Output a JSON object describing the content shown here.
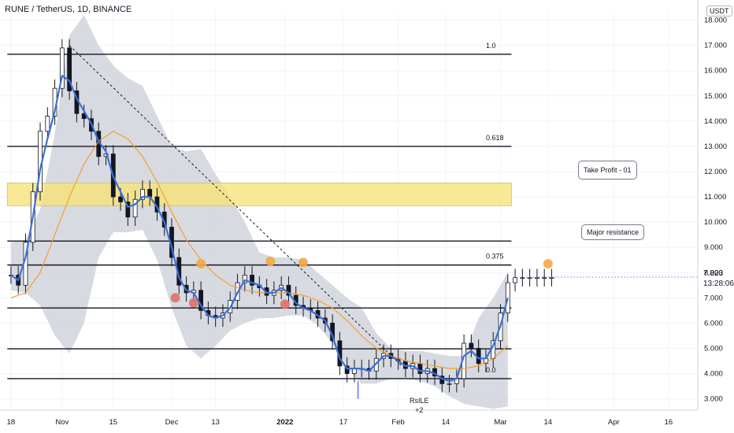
{
  "header": {
    "title": "RUNE / TetherUS, 1D, BINANCE",
    "unit": "USDT"
  },
  "price_readout": {
    "price": "7.823",
    "timer": "13:28:06"
  },
  "annotations": {
    "take_profit": "Take Profit - 01",
    "major_resistance": "Major resistance",
    "rsi_label": "RsILE",
    "rsi_sub": "+2"
  },
  "colors": {
    "candle_up": "#131722",
    "candle_down": "#131722",
    "body_up": "#ffffff",
    "ema_fast": "#3d6fd6",
    "ema_slow": "#f0a030",
    "band_fill": "#d1d4dc",
    "zone_fill": "#f7e27a",
    "marker_orange": "#f4a742",
    "marker_red": "#e06f6a",
    "grid": "#f0f3fa"
  },
  "chart_data": {
    "type": "line",
    "xlabel": "",
    "ylabel": "",
    "x_ticks": [
      "18",
      "Nov",
      "15",
      "Dec",
      "13",
      "2022",
      "17",
      "Feb",
      "14",
      "Mar",
      "14",
      "Apr",
      "16"
    ],
    "x_tick_days": [
      -14,
      0,
      14,
      30,
      42,
      61,
      77,
      92,
      105,
      120,
      133,
      151,
      166
    ],
    "y_ticks": [
      3.0,
      4.0,
      5.0,
      6.0,
      7.0,
      8.0,
      9.0,
      10.0,
      11.0,
      12.0,
      13.0,
      14.0,
      15.0,
      16.0,
      17.0,
      18.0
    ],
    "y_tick_labels": [
      "3.000",
      "4.000",
      "5.000",
      "6.000",
      "7.000",
      "8.000",
      "9.000",
      "10.000",
      "11.000",
      "12.000",
      "13.000",
      "14.000",
      "15.000",
      "16.000",
      "17.000",
      "18.000"
    ],
    "ylim": [
      2.55,
      18.3
    ],
    "xlim_days": [
      -17,
      174
    ],
    "grid": true,
    "fib_levels": [
      {
        "label": "1.0",
        "price": 16.65
      },
      {
        "label": "0.618",
        "price": 13.0
      },
      {
        "label": "",
        "price": 9.25
      },
      {
        "label": "0.375",
        "price": 8.3
      },
      {
        "label": "",
        "price": 6.6
      },
      {
        "label": "",
        "price": 4.98
      },
      {
        "label": "0.0",
        "price": 3.8
      }
    ],
    "zone": {
      "label": "Take Profit - 01",
      "y_low": 10.65,
      "y_high": 11.55
    },
    "trendline": {
      "start": [
        2,
        17.0
      ],
      "end": [
        93,
        4.3
      ]
    },
    "markers": [
      {
        "day": 38,
        "price": 8.35,
        "kind": "orange"
      },
      {
        "day": 57,
        "price": 8.45,
        "kind": "orange"
      },
      {
        "day": 66,
        "price": 8.4,
        "kind": "orange"
      },
      {
        "day": 133,
        "price": 8.35,
        "kind": "orange"
      },
      {
        "day": 31,
        "price": 7.0,
        "kind": "red"
      },
      {
        "day": 36,
        "price": 6.8,
        "kind": "red"
      },
      {
        "day": 61,
        "price": 6.75,
        "kind": "red"
      }
    ],
    "series": [
      {
        "day": [
          -14,
          -12,
          -10,
          -8,
          -6,
          -4,
          -2,
          0,
          2,
          4,
          6,
          8,
          10,
          12,
          14,
          16,
          18,
          20,
          22,
          24,
          26,
          28,
          30,
          32,
          34,
          36,
          38,
          40,
          42,
          44,
          46,
          48,
          50,
          52,
          54,
          56,
          58,
          60,
          62,
          64,
          66,
          68,
          70,
          72,
          74,
          76,
          78,
          80,
          82,
          84,
          86,
          88,
          90,
          92,
          94,
          96,
          98,
          100,
          102,
          104,
          106,
          108,
          110,
          112,
          114,
          116,
          118,
          120,
          122,
          124,
          126,
          128,
          130,
          132,
          134
        ],
        "close": [
          7.9,
          7.5,
          9.2,
          11.2,
          13.6,
          14.2,
          15.3,
          16.9,
          15.2,
          14.3,
          14.1,
          13.6,
          12.6,
          12.7,
          11.0,
          10.8,
          10.2,
          10.9,
          11.3,
          11.0,
          10.4,
          9.8,
          8.6,
          7.5,
          7.2,
          7.3,
          6.5,
          6.3,
          6.2,
          6.4,
          6.9,
          7.6,
          7.9,
          7.5,
          7.4,
          7.1,
          7.3,
          7.5,
          7.1,
          6.7,
          6.6,
          6.5,
          6.2,
          6.0,
          5.3,
          4.3,
          4.0,
          4.2,
          4.2,
          4.1,
          4.6,
          4.8,
          4.6,
          4.5,
          4.2,
          4.4,
          4.0,
          4.2,
          3.9,
          3.6,
          3.6,
          3.8,
          5.2,
          5.0,
          4.4,
          4.6,
          5.3,
          6.4,
          7.6,
          7.8,
          7.8,
          7.8,
          7.8,
          7.8,
          7.8
        ]
      },
      {
        "name": "",
        "day": [
          -14,
          -12,
          -10,
          -8,
          -6,
          -4,
          -2,
          0,
          2,
          4,
          6,
          8,
          10,
          12,
          14,
          16,
          18,
          20,
          22,
          24,
          26,
          28,
          30,
          32,
          34,
          36,
          38,
          40,
          42,
          44,
          46,
          48,
          50,
          52,
          54,
          56,
          58,
          60,
          62,
          64,
          66,
          68,
          70,
          72,
          74,
          76,
          78,
          80,
          82,
          84,
          86,
          88,
          90,
          92,
          94,
          96,
          98,
          100,
          102,
          104,
          106,
          108,
          110,
          112,
          114,
          116,
          118,
          120,
          122
        ],
        "values": [
          7.9,
          7.7,
          8.6,
          10.2,
          12.1,
          13.3,
          14.4,
          15.8,
          15.6,
          14.9,
          14.4,
          13.9,
          13.2,
          12.8,
          11.8,
          11.2,
          10.6,
          10.7,
          11.0,
          11.0,
          10.6,
          10.0,
          9.0,
          7.8,
          7.3,
          7.2,
          6.7,
          6.3,
          6.2,
          6.3,
          6.6,
          7.2,
          7.7,
          7.6,
          7.5,
          7.2,
          7.2,
          7.4,
          7.2,
          6.8,
          6.6,
          6.5,
          6.3,
          6.1,
          5.5,
          4.6,
          4.2,
          4.2,
          4.2,
          4.1,
          4.4,
          4.7,
          4.7,
          4.5,
          4.3,
          4.3,
          4.1,
          4.1,
          4.0,
          3.8,
          3.7,
          3.8,
          4.7,
          4.9,
          4.6,
          4.6,
          5.1,
          5.9,
          7.0
        ]
      },
      {
        "name": "",
        "day": [
          -14,
          -10,
          -6,
          -2,
          2,
          6,
          10,
          14,
          18,
          22,
          26,
          30,
          34,
          38,
          42,
          46,
          50,
          54,
          58,
          62,
          66,
          70,
          74,
          78,
          82,
          86,
          90,
          94,
          98,
          102,
          106,
          110,
          114,
          118,
          122
        ],
        "values": [
          7.0,
          7.2,
          8.0,
          9.5,
          11.0,
          12.3,
          13.2,
          13.6,
          13.3,
          12.6,
          11.6,
          10.4,
          9.3,
          8.5,
          7.9,
          7.5,
          7.3,
          7.2,
          7.2,
          7.2,
          7.1,
          6.9,
          6.6,
          6.1,
          5.5,
          5.0,
          4.7,
          4.5,
          4.4,
          4.3,
          4.2,
          4.2,
          4.3,
          4.6,
          5.1
        ]
      }
    ],
    "bands": {
      "day": [
        -14,
        -10,
        -6,
        -2,
        2,
        6,
        10,
        14,
        18,
        22,
        26,
        30,
        34,
        38,
        42,
        46,
        50,
        54,
        58,
        62,
        66,
        70,
        74,
        78,
        82,
        86,
        90,
        94,
        98,
        102,
        106,
        110,
        114,
        118,
        122
      ],
      "upper": [
        9.2,
        9.3,
        10.5,
        13.5,
        17.4,
        18.2,
        17.0,
        16.2,
        15.7,
        15.4,
        14.2,
        13.0,
        12.8,
        12.9,
        11.9,
        11.0,
        10.0,
        8.8,
        8.6,
        8.6,
        8.5,
        8.0,
        7.5,
        7.0,
        6.6,
        5.6,
        5.0,
        4.9,
        4.9,
        4.8,
        4.7,
        4.7,
        6.2,
        7.0,
        8.0
      ],
      "lower": [
        7.3,
        7.2,
        6.7,
        5.5,
        4.8,
        6.0,
        8.6,
        9.6,
        9.6,
        9.7,
        8.5,
        6.6,
        5.1,
        4.6,
        5.1,
        5.7,
        6.0,
        6.2,
        6.2,
        6.3,
        6.3,
        5.9,
        5.2,
        4.2,
        3.6,
        3.6,
        3.8,
        3.8,
        3.7,
        3.5,
        3.1,
        2.8,
        2.7,
        2.6,
        2.7
      ]
    }
  }
}
